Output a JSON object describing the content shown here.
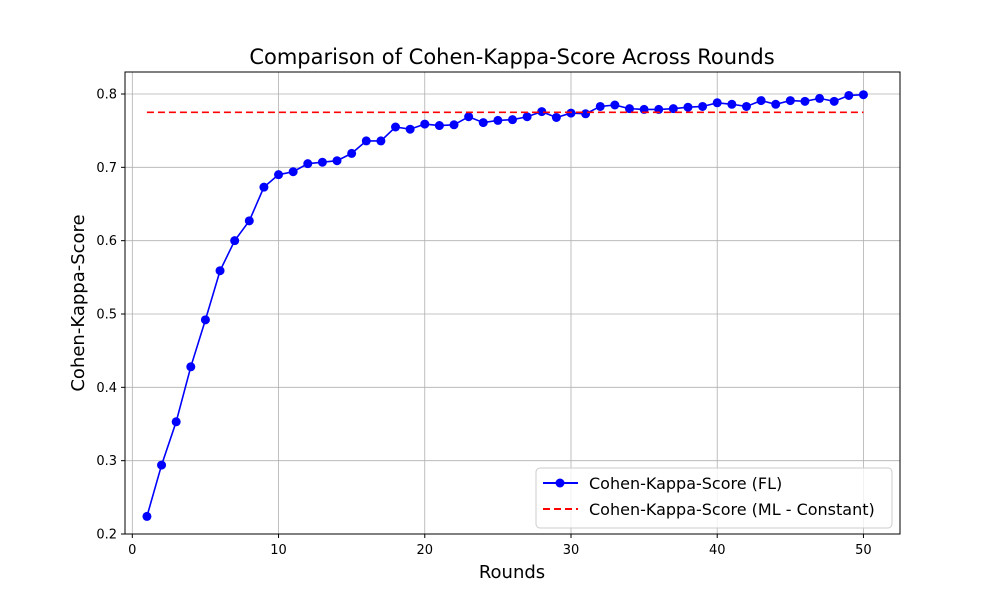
{
  "chart_data": {
    "type": "line",
    "title": "Comparison of Cohen-Kappa-Score Across Rounds",
    "xlabel": "Rounds",
    "ylabel": "Cohen-Kappa-Score",
    "xlim": [
      -0.5,
      52.5
    ],
    "ylim": [
      0.2,
      0.83
    ],
    "xticks": [
      0,
      10,
      20,
      30,
      40,
      50
    ],
    "yticks": [
      0.2,
      0.3,
      0.4,
      0.5,
      0.6,
      0.7,
      0.8
    ],
    "grid": true,
    "legend_position": "lower-right",
    "series": [
      {
        "name": "Cohen-Kappa-Score (FL)",
        "color": "#0000ff",
        "style": "solid-with-markers",
        "x": [
          1,
          2,
          3,
          4,
          5,
          6,
          7,
          8,
          9,
          10,
          11,
          12,
          13,
          14,
          15,
          16,
          17,
          18,
          19,
          20,
          21,
          22,
          23,
          24,
          25,
          26,
          27,
          28,
          29,
          30,
          31,
          32,
          33,
          34,
          35,
          36,
          37,
          38,
          39,
          40,
          41,
          42,
          43,
          44,
          45,
          46,
          47,
          48,
          49,
          50
        ],
        "y": [
          0.224,
          0.294,
          0.353,
          0.428,
          0.492,
          0.559,
          0.6,
          0.627,
          0.673,
          0.69,
          0.694,
          0.705,
          0.707,
          0.709,
          0.719,
          0.736,
          0.736,
          0.755,
          0.752,
          0.759,
          0.757,
          0.758,
          0.769,
          0.761,
          0.764,
          0.765,
          0.769,
          0.776,
          0.768,
          0.774,
          0.773,
          0.783,
          0.785,
          0.78,
          0.779,
          0.779,
          0.78,
          0.782,
          0.783,
          0.788,
          0.786,
          0.783,
          0.791,
          0.786,
          0.791,
          0.79,
          0.794,
          0.79,
          0.798,
          0.799
        ]
      },
      {
        "name": "Cohen-Kappa-Score (ML - Constant)",
        "color": "#ff0000",
        "style": "dashed",
        "x": [
          1,
          50
        ],
        "y": [
          0.775,
          0.775
        ]
      }
    ]
  }
}
